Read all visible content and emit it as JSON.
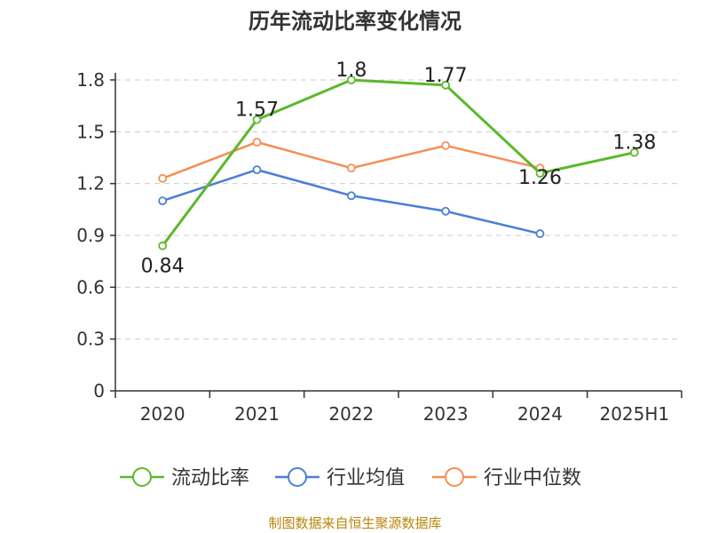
{
  "chart_data": {
    "type": "line",
    "title": "历年流动比率变化情况",
    "categories": [
      "2020",
      "2021",
      "2022",
      "2023",
      "2024",
      "2025H1"
    ],
    "ylim": [
      0,
      1.8
    ],
    "yticks": [
      "0",
      "0.3",
      "0.6",
      "0.9",
      "1.2",
      "1.5",
      "1.8"
    ],
    "grid": true,
    "legend_position": "bottom",
    "series": [
      {
        "name": "流动比率",
        "color": "#5cb82c",
        "values": [
          0.84,
          1.57,
          1.8,
          1.77,
          1.26,
          1.38
        ],
        "labels": [
          "0.84",
          "1.57",
          "1.8",
          "1.77",
          "1.26",
          "1.38"
        ]
      },
      {
        "name": "行业均值",
        "color": "#4a7fd6",
        "values": [
          1.1,
          1.28,
          1.13,
          1.04,
          0.91,
          null
        ]
      },
      {
        "name": "行业中位数",
        "color": "#f58f55",
        "values": [
          1.23,
          1.44,
          1.29,
          1.42,
          1.29,
          null
        ]
      }
    ]
  },
  "source": "制图数据来自恒生聚源数据库"
}
